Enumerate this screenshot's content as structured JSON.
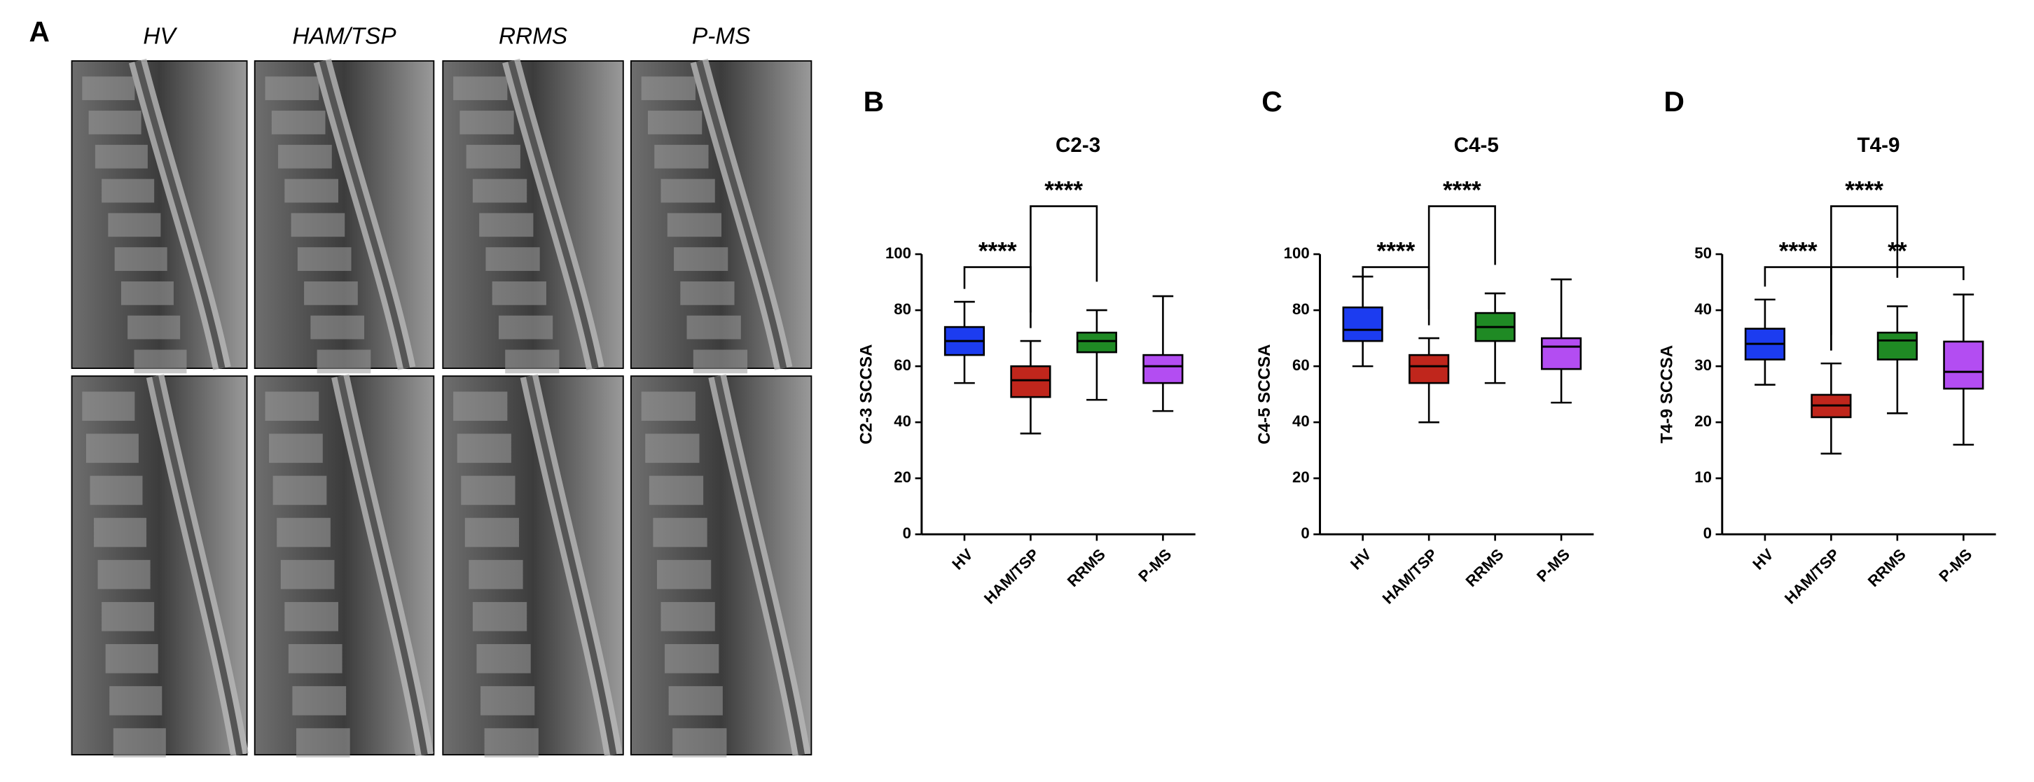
{
  "figure": {
    "panel_label": "A",
    "columns": [
      "HV",
      "HAM/TSP",
      "RRMS",
      "P-MS"
    ]
  },
  "chart_data": [
    {
      "type": "box",
      "panel_label": "B",
      "title": "C2-3",
      "y_label": "C2-3 SCCSA",
      "categories": [
        "HV",
        "HAM/TSP",
        "RRMS",
        "P-MS"
      ],
      "boxes": [
        {
          "min": 54,
          "q1": 64,
          "median": 69,
          "q3": 74,
          "max": 83,
          "color": "#1c3cf0"
        },
        {
          "min": 36,
          "q1": 49,
          "median": 55,
          "q3": 60,
          "max": 69,
          "color": "#c0261c"
        },
        {
          "min": 48,
          "q1": 65,
          "median": 69,
          "q3": 72,
          "max": 80,
          "color": "#1f8a24"
        },
        {
          "min": 44,
          "q1": 54,
          "median": 60,
          "q3": 64,
          "max": 85,
          "color": "#b34df2"
        }
      ],
      "ylim": [
        0,
        100
      ],
      "yticks": [
        0,
        20,
        40,
        60,
        80,
        100
      ],
      "annotations": [
        {
          "text": "****",
          "between": [
            "HV",
            "HAM/TSP"
          ]
        },
        {
          "text": "****",
          "between": [
            "HAM/TSP",
            "RRMS"
          ]
        }
      ]
    },
    {
      "type": "box",
      "panel_label": "C",
      "title": "C4-5",
      "y_label": "C4-5 SCCSA",
      "categories": [
        "HV",
        "HAM/TSP",
        "RRMS",
        "P-MS"
      ],
      "boxes": [
        {
          "min": 60,
          "q1": 69,
          "median": 73,
          "q3": 81,
          "max": 92,
          "color": "#1c3cf0"
        },
        {
          "min": 40,
          "q1": 54,
          "median": 60,
          "q3": 64,
          "max": 70,
          "color": "#c0261c"
        },
        {
          "min": 54,
          "q1": 69,
          "median": 74,
          "q3": 79,
          "max": 86,
          "color": "#1f8a24"
        },
        {
          "min": 47,
          "q1": 59,
          "median": 67,
          "q3": 70,
          "max": 91,
          "color": "#b34df2"
        }
      ],
      "ylim": [
        0,
        100
      ],
      "yticks": [
        0,
        20,
        40,
        60,
        80,
        100
      ],
      "annotations": [
        {
          "text": "****",
          "between": [
            "HV",
            "HAM/TSP"
          ]
        },
        {
          "text": "****",
          "between": [
            "HAM/TSP",
            "RRMS"
          ]
        }
      ]
    },
    {
      "type": "box",
      "panel_label": "D",
      "title": "T4-9",
      "y_label": "T4-9 SCCSA",
      "categories": [
        "HV",
        "HAM/TSP",
        "RRMS",
        "P-MS"
      ],
      "boxes": [
        {
          "min": 26.7,
          "q1": 31.2,
          "median": 34,
          "q3": 36.7,
          "max": 41.9,
          "color": "#1c3cf0"
        },
        {
          "min": 14.4,
          "q1": 20.9,
          "median": 23,
          "q3": 24.9,
          "max": 30.5,
          "color": "#c0261c"
        },
        {
          "min": 21.6,
          "q1": 31.2,
          "median": 34.6,
          "q3": 36,
          "max": 40.7,
          "color": "#1f8a24"
        },
        {
          "min": 16,
          "q1": 26,
          "median": 29,
          "q3": 34.4,
          "max": 42.8,
          "color": "#b34df2"
        }
      ],
      "ylim": [
        0,
        50
      ],
      "yticks": [
        0,
        10,
        20,
        30,
        40,
        50
      ],
      "annotations": [
        {
          "text": "****",
          "between": [
            "HV",
            "HAM/TSP"
          ]
        },
        {
          "text": "****",
          "between": [
            "HAM/TSP",
            "RRMS"
          ]
        },
        {
          "text": "**",
          "between": [
            "HAM/TSP",
            "P-MS"
          ]
        }
      ]
    }
  ]
}
